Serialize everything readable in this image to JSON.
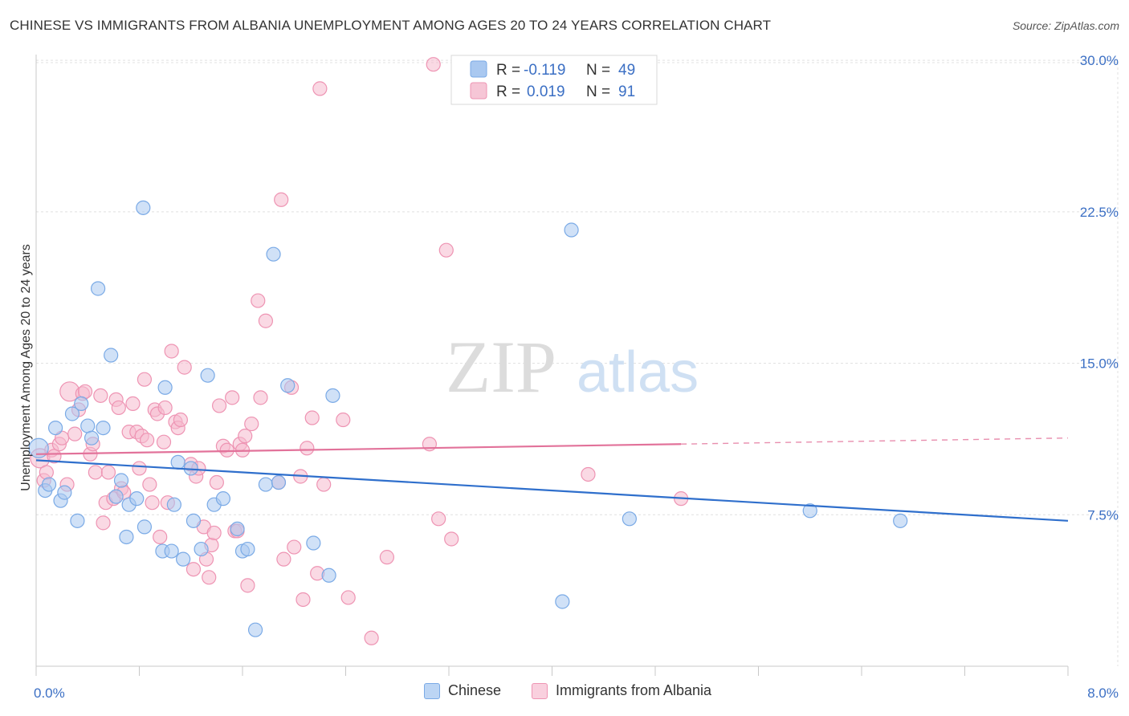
{
  "title": "CHINESE VS IMMIGRANTS FROM ALBANIA UNEMPLOYMENT AMONG AGES 20 TO 24 YEARS CORRELATION CHART",
  "source": "Source: ZipAtlas.com",
  "watermark": {
    "zip": "ZIP",
    "atlas": "atlas"
  },
  "colors": {
    "blue_fill": "#a9c8f0",
    "blue_stroke": "#7aaae6",
    "blue_line": "#2f6fcc",
    "pink_fill": "#f6b9cd",
    "pink_stroke": "#ee94b3",
    "pink_line": "#e2729a",
    "grid": "#e0e0e0",
    "tick_text": "#3b6fc4"
  },
  "legend": {
    "rows": [
      {
        "r_label": "R =",
        "r_value": "-0.119",
        "n_label": "N =",
        "n_value": "49"
      },
      {
        "r_label": "R =",
        "r_value": "0.019",
        "n_label": "N =",
        "n_value": "91"
      }
    ]
  },
  "bottom_legend": {
    "chinese": "Chinese",
    "albania": "Immigrants from Albania"
  },
  "chart_data": {
    "type": "scatter",
    "title": "CHINESE VS IMMIGRANTS FROM ALBANIA UNEMPLOYMENT AMONG AGES 20 TO 24 YEARS CORRELATION CHART",
    "xlabel": "",
    "ylabel": "Unemployment Among Ages 20 to 24 years",
    "xlim": [
      0,
      8
    ],
    "ylim": [
      0,
      31
    ],
    "x_tick_labels": [
      "0.0%",
      "8.0%"
    ],
    "y_ticks": [
      7.5,
      15.0,
      22.5,
      30.0
    ],
    "y_tick_labels": [
      "7.5%",
      "15.0%",
      "22.5%",
      "30.0%"
    ],
    "grid": true,
    "legend_position": "top-center",
    "series": [
      {
        "name": "Chinese",
        "r": -0.119,
        "n": 49,
        "trend": {
          "x": [
            0,
            8
          ],
          "y": [
            10.2,
            7.2
          ]
        },
        "points": [
          {
            "x": 0.02,
            "y": 10.8,
            "big": true
          },
          {
            "x": 0.07,
            "y": 8.7
          },
          {
            "x": 0.1,
            "y": 9.0
          },
          {
            "x": 0.15,
            "y": 11.8
          },
          {
            "x": 0.19,
            "y": 8.2
          },
          {
            "x": 0.22,
            "y": 8.6
          },
          {
            "x": 0.28,
            "y": 12.5
          },
          {
            "x": 0.32,
            "y": 7.2
          },
          {
            "x": 0.35,
            "y": 13.0
          },
          {
            "x": 0.4,
            "y": 11.9
          },
          {
            "x": 0.43,
            "y": 11.3
          },
          {
            "x": 0.48,
            "y": 18.7
          },
          {
            "x": 0.52,
            "y": 11.8
          },
          {
            "x": 0.58,
            "y": 15.4
          },
          {
            "x": 0.62,
            "y": 8.4
          },
          {
            "x": 0.66,
            "y": 9.2
          },
          {
            "x": 0.7,
            "y": 6.4
          },
          {
            "x": 0.72,
            "y": 8.0
          },
          {
            "x": 0.78,
            "y": 8.3
          },
          {
            "x": 0.83,
            "y": 22.7
          },
          {
            "x": 0.84,
            "y": 6.9
          },
          {
            "x": 0.98,
            "y": 5.7
          },
          {
            "x": 1.0,
            "y": 13.8
          },
          {
            "x": 1.05,
            "y": 5.7
          },
          {
            "x": 1.07,
            "y": 8.0
          },
          {
            "x": 1.1,
            "y": 10.1
          },
          {
            "x": 1.14,
            "y": 5.3
          },
          {
            "x": 1.2,
            "y": 9.8
          },
          {
            "x": 1.22,
            "y": 7.2
          },
          {
            "x": 1.28,
            "y": 5.8
          },
          {
            "x": 1.33,
            "y": 14.4
          },
          {
            "x": 1.38,
            "y": 8.0
          },
          {
            "x": 1.45,
            "y": 8.3
          },
          {
            "x": 1.56,
            "y": 6.8
          },
          {
            "x": 1.6,
            "y": 5.7
          },
          {
            "x": 1.64,
            "y": 5.8
          },
          {
            "x": 1.7,
            "y": 1.8
          },
          {
            "x": 1.78,
            "y": 9.0
          },
          {
            "x": 1.84,
            "y": 20.4
          },
          {
            "x": 1.88,
            "y": 9.1
          },
          {
            "x": 1.95,
            "y": 13.9
          },
          {
            "x": 2.15,
            "y": 6.1
          },
          {
            "x": 2.27,
            "y": 4.5
          },
          {
            "x": 2.3,
            "y": 13.4
          },
          {
            "x": 4.08,
            "y": 3.2
          },
          {
            "x": 4.15,
            "y": 21.6
          },
          {
            "x": 4.6,
            "y": 7.3
          },
          {
            "x": 6.0,
            "y": 7.7
          },
          {
            "x": 6.7,
            "y": 7.2
          }
        ]
      },
      {
        "name": "Immigrants from Albania",
        "r": 0.019,
        "n": 91,
        "trend": {
          "x": [
            0,
            5.0
          ],
          "y": [
            10.5,
            11.0
          ]
        },
        "trend_dashed": {
          "x": [
            5.0,
            8
          ],
          "y": [
            11.0,
            11.3
          ]
        },
        "points": [
          {
            "x": 0.03,
            "y": 10.3,
            "big": true
          },
          {
            "x": 0.06,
            "y": 9.2
          },
          {
            "x": 0.08,
            "y": 9.6
          },
          {
            "x": 0.12,
            "y": 10.7
          },
          {
            "x": 0.14,
            "y": 10.4
          },
          {
            "x": 0.18,
            "y": 11.0
          },
          {
            "x": 0.2,
            "y": 11.3
          },
          {
            "x": 0.24,
            "y": 9.0
          },
          {
            "x": 0.26,
            "y": 13.6,
            "big": true
          },
          {
            "x": 0.3,
            "y": 11.5
          },
          {
            "x": 0.33,
            "y": 12.7
          },
          {
            "x": 0.36,
            "y": 13.5
          },
          {
            "x": 0.38,
            "y": 13.6
          },
          {
            "x": 0.42,
            "y": 10.5
          },
          {
            "x": 0.44,
            "y": 11.0
          },
          {
            "x": 0.46,
            "y": 9.6
          },
          {
            "x": 0.5,
            "y": 13.4
          },
          {
            "x": 0.52,
            "y": 7.1
          },
          {
            "x": 0.54,
            "y": 8.1
          },
          {
            "x": 0.56,
            "y": 9.6
          },
          {
            "x": 0.6,
            "y": 8.3
          },
          {
            "x": 0.62,
            "y": 13.2
          },
          {
            "x": 0.64,
            "y": 12.8
          },
          {
            "x": 0.66,
            "y": 8.8
          },
          {
            "x": 0.68,
            "y": 8.6
          },
          {
            "x": 0.72,
            "y": 11.6
          },
          {
            "x": 0.75,
            "y": 13.0
          },
          {
            "x": 0.78,
            "y": 11.6
          },
          {
            "x": 0.8,
            "y": 9.8
          },
          {
            "x": 0.82,
            "y": 11.4
          },
          {
            "x": 0.84,
            "y": 14.2
          },
          {
            "x": 0.86,
            "y": 11.2
          },
          {
            "x": 0.88,
            "y": 9.0
          },
          {
            "x": 0.9,
            "y": 8.1
          },
          {
            "x": 0.92,
            "y": 12.7
          },
          {
            "x": 0.94,
            "y": 12.5
          },
          {
            "x": 0.96,
            "y": 6.4
          },
          {
            "x": 0.99,
            "y": 11.1
          },
          {
            "x": 1.0,
            "y": 12.8
          },
          {
            "x": 1.02,
            "y": 8.1
          },
          {
            "x": 1.05,
            "y": 15.6
          },
          {
            "x": 1.08,
            "y": 12.1
          },
          {
            "x": 1.1,
            "y": 11.8
          },
          {
            "x": 1.12,
            "y": 12.2
          },
          {
            "x": 1.15,
            "y": 14.8
          },
          {
            "x": 1.2,
            "y": 10.0
          },
          {
            "x": 1.22,
            "y": 4.8
          },
          {
            "x": 1.24,
            "y": 9.4
          },
          {
            "x": 1.26,
            "y": 9.8
          },
          {
            "x": 1.3,
            "y": 6.9
          },
          {
            "x": 1.32,
            "y": 5.3
          },
          {
            "x": 1.34,
            "y": 4.4
          },
          {
            "x": 1.36,
            "y": 6.0
          },
          {
            "x": 1.38,
            "y": 6.6
          },
          {
            "x": 1.4,
            "y": 9.1
          },
          {
            "x": 1.42,
            "y": 12.9
          },
          {
            "x": 1.45,
            "y": 10.9
          },
          {
            "x": 1.48,
            "y": 10.7
          },
          {
            "x": 1.52,
            "y": 13.3
          },
          {
            "x": 1.54,
            "y": 6.7
          },
          {
            "x": 1.56,
            "y": 6.7
          },
          {
            "x": 1.58,
            "y": 11.0
          },
          {
            "x": 1.6,
            "y": 10.7
          },
          {
            "x": 1.62,
            "y": 11.4
          },
          {
            "x": 1.64,
            "y": 4.0
          },
          {
            "x": 1.67,
            "y": 12.0
          },
          {
            "x": 1.72,
            "y": 18.1
          },
          {
            "x": 1.74,
            "y": 13.3
          },
          {
            "x": 1.78,
            "y": 17.1
          },
          {
            "x": 1.88,
            "y": 9.1
          },
          {
            "x": 1.9,
            "y": 23.1
          },
          {
            "x": 1.92,
            "y": 5.3
          },
          {
            "x": 1.98,
            "y": 13.8
          },
          {
            "x": 2.0,
            "y": 5.9
          },
          {
            "x": 2.05,
            "y": 9.4
          },
          {
            "x": 2.07,
            "y": 3.3
          },
          {
            "x": 2.1,
            "y": 10.8
          },
          {
            "x": 2.14,
            "y": 12.3
          },
          {
            "x": 2.18,
            "y": 4.6
          },
          {
            "x": 2.2,
            "y": 28.6
          },
          {
            "x": 2.23,
            "y": 9.0
          },
          {
            "x": 2.38,
            "y": 12.2
          },
          {
            "x": 2.42,
            "y": 3.4
          },
          {
            "x": 2.6,
            "y": 1.4
          },
          {
            "x": 2.72,
            "y": 5.4
          },
          {
            "x": 3.05,
            "y": 11.0
          },
          {
            "x": 3.08,
            "y": 29.8
          },
          {
            "x": 3.12,
            "y": 7.3
          },
          {
            "x": 3.18,
            "y": 20.6
          },
          {
            "x": 3.22,
            "y": 6.3
          },
          {
            "x": 4.28,
            "y": 9.5
          },
          {
            "x": 5.0,
            "y": 8.3
          }
        ]
      }
    ]
  }
}
